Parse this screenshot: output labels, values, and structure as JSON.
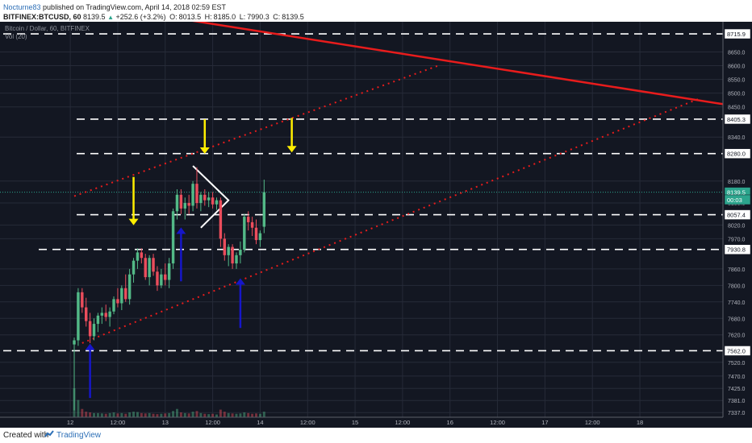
{
  "header": {
    "author": "Nocturne83",
    "published": "published on TradingView.com, April 14, 2018 02:59 EST",
    "symbol": "BITFINEX:BTCUSD, 60",
    "price": "8139.5",
    "change": "+252.6 (+3.2%)",
    "open_label": "O:",
    "open": "8013.5",
    "high_label": "H:",
    "high": "8185.0",
    "low_label": "L:",
    "low": "7990.3",
    "close_label": "C:",
    "close": "8139.5"
  },
  "legend": {
    "title": "Bitcoin / Dollar, 60, BITFINEX",
    "volume": "Vol (20)"
  },
  "footer": {
    "created_with": "Created with",
    "brand": "TradingView"
  },
  "colors": {
    "background": "#131722",
    "grid": "#262b38",
    "candle_up": "#53b987",
    "candle_down": "#eb4d5c",
    "trend_red": "#e81c1c",
    "level_white": "#ffffff",
    "arrow_yellow": "#ffee00",
    "arrow_blue": "#1616c9",
    "price_tag_green": "#2ca58d"
  },
  "chart_data": {
    "type": "candlestick",
    "ylim": [
      7320,
      8760
    ],
    "xlim": [
      -2,
      164
    ],
    "x_ticks": [
      {
        "x": -1,
        "label": "12"
      },
      {
        "x": 11,
        "label": "12:00"
      },
      {
        "x": 23,
        "label": "13"
      },
      {
        "x": 35,
        "label": "12:00"
      },
      {
        "x": 47,
        "label": "14"
      },
      {
        "x": 59,
        "label": "12:00"
      },
      {
        "x": 71,
        "label": "15"
      },
      {
        "x": 83,
        "label": "12:00"
      },
      {
        "x": 95,
        "label": "16"
      },
      {
        "x": 107,
        "label": "12:00"
      },
      {
        "x": 119,
        "label": "17"
      },
      {
        "x": 131,
        "label": "12:00"
      },
      {
        "x": 143,
        "label": "18"
      }
    ],
    "y_ticks": [
      "8650.0",
      "8600.0",
      "8550.0",
      "8500.0",
      "8450.0",
      "8340.0",
      "8180.0",
      "8100.0",
      "8020.0",
      "7970.0",
      "7860.0",
      "7800.0",
      "7740.0",
      "7680.0",
      "7620.0",
      "7520.0",
      "7470.0",
      "7425.0",
      "7381.0",
      "7337.0"
    ],
    "price_tags": [
      {
        "label": "8715.9",
        "value": 8715.9,
        "style": "white"
      },
      {
        "label": "8405.3",
        "value": 8405.3,
        "style": "white"
      },
      {
        "label": "8280.0",
        "value": 8280.0,
        "style": "white"
      },
      {
        "label": "8139.5",
        "value": 8139.5,
        "style": "green"
      },
      {
        "label": "00:03",
        "value": 8112,
        "style": "green"
      },
      {
        "label": "8057.4",
        "value": 8057.4,
        "style": "white"
      },
      {
        "label": "7930.8",
        "value": 7930.8,
        "style": "white"
      },
      {
        "label": "7562.0",
        "value": 7562.0,
        "style": "white"
      }
    ],
    "last_price": 8139.5,
    "candles": [
      {
        "o": 7585,
        "h": 7610,
        "l": 7345,
        "c": 7600
      },
      {
        "o": 7600,
        "h": 7790,
        "l": 7580,
        "c": 7775
      },
      {
        "o": 7775,
        "h": 7790,
        "l": 7700,
        "c": 7720
      },
      {
        "o": 7720,
        "h": 7755,
        "l": 7650,
        "c": 7670
      },
      {
        "o": 7670,
        "h": 7700,
        "l": 7590,
        "c": 7615
      },
      {
        "o": 7615,
        "h": 7680,
        "l": 7600,
        "c": 7660
      },
      {
        "o": 7660,
        "h": 7700,
        "l": 7630,
        "c": 7690
      },
      {
        "o": 7690,
        "h": 7720,
        "l": 7660,
        "c": 7700
      },
      {
        "o": 7700,
        "h": 7730,
        "l": 7670,
        "c": 7685
      },
      {
        "o": 7685,
        "h": 7720,
        "l": 7650,
        "c": 7705
      },
      {
        "o": 7705,
        "h": 7760,
        "l": 7695,
        "c": 7750
      },
      {
        "o": 7750,
        "h": 7790,
        "l": 7720,
        "c": 7735
      },
      {
        "o": 7735,
        "h": 7800,
        "l": 7710,
        "c": 7790
      },
      {
        "o": 7790,
        "h": 7840,
        "l": 7740,
        "c": 7750
      },
      {
        "o": 7750,
        "h": 7860,
        "l": 7730,
        "c": 7840
      },
      {
        "o": 7840,
        "h": 7900,
        "l": 7810,
        "c": 7890
      },
      {
        "o": 7890,
        "h": 7935,
        "l": 7860,
        "c": 7920
      },
      {
        "o": 7920,
        "h": 7935,
        "l": 7880,
        "c": 7900
      },
      {
        "o": 7900,
        "h": 7915,
        "l": 7820,
        "c": 7830
      },
      {
        "o": 7830,
        "h": 7910,
        "l": 7800,
        "c": 7900
      },
      {
        "o": 7900,
        "h": 7915,
        "l": 7835,
        "c": 7850
      },
      {
        "o": 7850,
        "h": 7870,
        "l": 7780,
        "c": 7800
      },
      {
        "o": 7800,
        "h": 7860,
        "l": 7790,
        "c": 7840
      },
      {
        "o": 7840,
        "h": 7880,
        "l": 7800,
        "c": 7820
      },
      {
        "o": 7820,
        "h": 7900,
        "l": 7790,
        "c": 7880
      },
      {
        "o": 7880,
        "h": 8080,
        "l": 7860,
        "c": 8070
      },
      {
        "o": 8070,
        "h": 8150,
        "l": 8040,
        "c": 8130
      },
      {
        "o": 8130,
        "h": 8150,
        "l": 8060,
        "c": 8080
      },
      {
        "o": 8080,
        "h": 8120,
        "l": 8040,
        "c": 8100
      },
      {
        "o": 8100,
        "h": 8130,
        "l": 8060,
        "c": 8090
      },
      {
        "o": 8090,
        "h": 8180,
        "l": 8070,
        "c": 8170
      },
      {
        "o": 8170,
        "h": 8230,
        "l": 8080,
        "c": 8100
      },
      {
        "o": 8100,
        "h": 8140,
        "l": 8070,
        "c": 8130
      },
      {
        "o": 8130,
        "h": 8150,
        "l": 8090,
        "c": 8110
      },
      {
        "o": 8110,
        "h": 8140,
        "l": 8085,
        "c": 8120
      },
      {
        "o": 8120,
        "h": 8140,
        "l": 8080,
        "c": 8095
      },
      {
        "o": 8095,
        "h": 8120,
        "l": 8075,
        "c": 8110
      },
      {
        "o": 8110,
        "h": 8120,
        "l": 7940,
        "c": 7970
      },
      {
        "o": 7970,
        "h": 7990,
        "l": 7890,
        "c": 7910
      },
      {
        "o": 7910,
        "h": 7950,
        "l": 7870,
        "c": 7940
      },
      {
        "o": 7940,
        "h": 7950,
        "l": 7860,
        "c": 7880
      },
      {
        "o": 7880,
        "h": 7920,
        "l": 7860,
        "c": 7910
      },
      {
        "o": 7910,
        "h": 7960,
        "l": 7880,
        "c": 7930
      },
      {
        "o": 7930,
        "h": 8060,
        "l": 7920,
        "c": 8050
      },
      {
        "o": 8050,
        "h": 8070,
        "l": 8000,
        "c": 8030
      },
      {
        "o": 8030,
        "h": 8050,
        "l": 7980,
        "c": 8010
      },
      {
        "o": 8010,
        "h": 8040,
        "l": 7950,
        "c": 7965
      },
      {
        "o": 7965,
        "h": 8000,
        "l": 7940,
        "c": 7990
      },
      {
        "o": 8013.5,
        "h": 8185,
        "l": 7990.3,
        "c": 8139.5
      }
    ],
    "volume": [
      420,
      250,
      120,
      80,
      70,
      60,
      60,
      55,
      50,
      60,
      70,
      55,
      60,
      50,
      70,
      80,
      75,
      60,
      55,
      60,
      50,
      45,
      50,
      55,
      60,
      90,
      120,
      70,
      60,
      55,
      80,
      90,
      60,
      50,
      45,
      50,
      40,
      110,
      80,
      60,
      55,
      50,
      55,
      70,
      60,
      50,
      55,
      50,
      80
    ],
    "volume_ma_label": "Vol (20)",
    "horizontal_levels": [
      8715.9,
      8405.3,
      8280.0,
      8057.4,
      7930.8,
      7562.0
    ],
    "annotations": {
      "red_resistance": [
        [
          16,
          8795
        ],
        [
          164,
          8460
        ]
      ],
      "channel_upper_dotted": [
        [
          0,
          8125
        ],
        [
          92,
          8600
        ]
      ],
      "channel_lower_dotted": [
        [
          2,
          7590
        ],
        [
          158,
          8480
        ]
      ],
      "white_triangle_lines": [
        [
          [
            30,
            8235
          ],
          [
            39,
            8110
          ],
          [
            32,
            8010
          ]
        ]
      ],
      "yellow_arrows_down": [
        [
          33,
          8405,
          8285
        ],
        [
          15,
          8195,
          8025
        ],
        [
          55,
          8410,
          8290
        ]
      ],
      "blue_arrows_up": [
        [
          4,
          7390,
          7582
        ],
        [
          27,
          7815,
          8005
        ],
        [
          42,
          7645,
          7820
        ]
      ]
    }
  }
}
